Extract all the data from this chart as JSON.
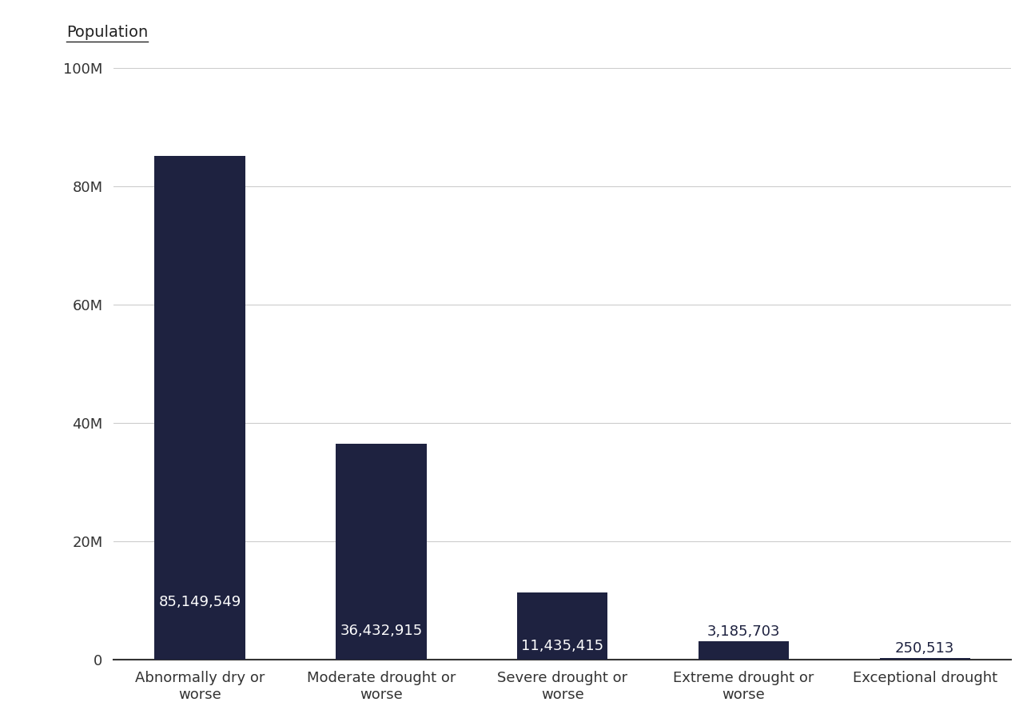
{
  "categories": [
    "Abnormally dry or\nworse",
    "Moderate drought or\nworse",
    "Severe drought or\nworse",
    "Extreme drought or\nworse",
    "Exceptional drought"
  ],
  "values": [
    85149549,
    36432915,
    11435415,
    3185703,
    250513
  ],
  "labels": [
    "85,149,549",
    "36,432,915",
    "11,435,415",
    "3,185,703",
    "250,513"
  ],
  "bar_color": "#1e2240",
  "background_color": "#ffffff",
  "ylabel": "Population",
  "ylim": [
    0,
    100000000
  ],
  "yticks": [
    0,
    20000000,
    40000000,
    60000000,
    80000000,
    100000000
  ],
  "ytick_labels": [
    "0",
    "20M",
    "40M",
    "60M",
    "80M",
    "100M"
  ],
  "grid_color": "#cccccc",
  "label_fontsize": 13,
  "tick_fontsize": 13,
  "ylabel_fontsize": 14,
  "bar_label_color_inside": "#ffffff",
  "bar_label_color_outside": "#1e2240",
  "inside_threshold": 5000000
}
